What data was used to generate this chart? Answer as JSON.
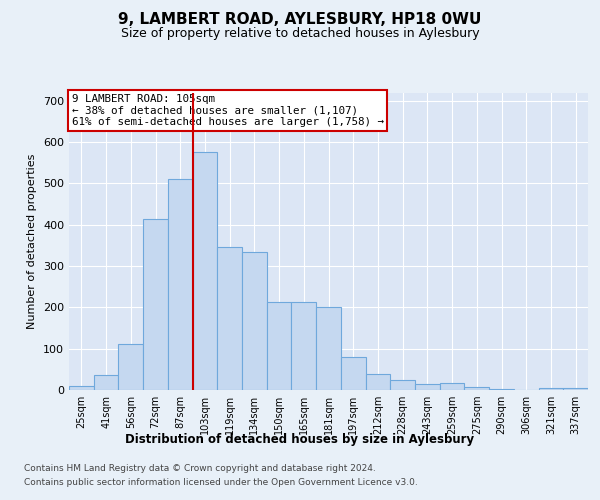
{
  "title": "9, LAMBERT ROAD, AYLESBURY, HP18 0WU",
  "subtitle": "Size of property relative to detached houses in Aylesbury",
  "xlabel": "Distribution of detached houses by size in Aylesbury",
  "ylabel": "Number of detached properties",
  "categories": [
    "25sqm",
    "41sqm",
    "56sqm",
    "72sqm",
    "87sqm",
    "103sqm",
    "119sqm",
    "134sqm",
    "150sqm",
    "165sqm",
    "181sqm",
    "197sqm",
    "212sqm",
    "228sqm",
    "243sqm",
    "259sqm",
    "275sqm",
    "290sqm",
    "306sqm",
    "321sqm",
    "337sqm"
  ],
  "values": [
    10,
    37,
    112,
    415,
    510,
    575,
    347,
    333,
    212,
    212,
    201,
    80,
    38,
    25,
    14,
    16,
    7,
    3,
    1,
    5,
    6
  ],
  "bar_color": "#c5d8f0",
  "bar_edge_color": "#6fa8dc",
  "annotation_title": "9 LAMBERT ROAD: 105sqm",
  "annotation_line1": "← 38% of detached houses are smaller (1,107)",
  "annotation_line2": "61% of semi-detached houses are larger (1,758) →",
  "annotation_box_color": "#ffffff",
  "annotation_box_edge_color": "#cc0000",
  "vline_color": "#cc0000",
  "vline_x": 4.5,
  "bg_color": "#e8f0f8",
  "plot_bg_color": "#dce6f5",
  "grid_color": "#ffffff",
  "footer_line1": "Contains HM Land Registry data © Crown copyright and database right 2024.",
  "footer_line2": "Contains public sector information licensed under the Open Government Licence v3.0.",
  "ylim": [
    0,
    720
  ],
  "yticks": [
    0,
    100,
    200,
    300,
    400,
    500,
    600,
    700
  ]
}
